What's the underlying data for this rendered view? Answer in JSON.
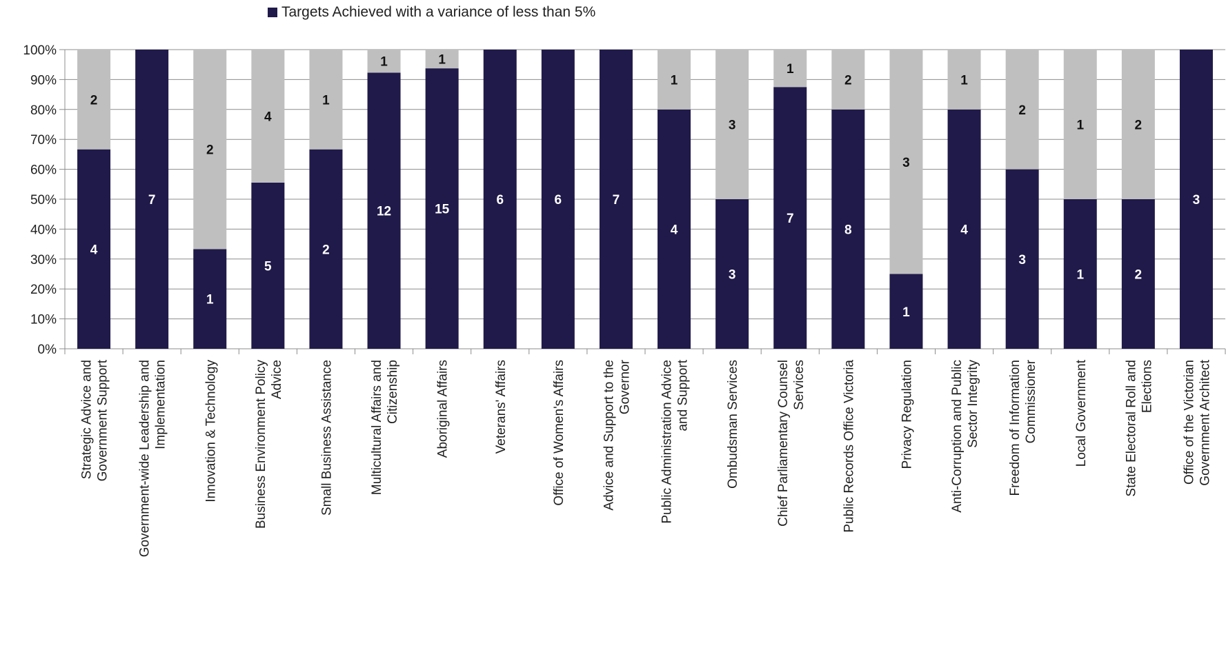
{
  "chart_data": {
    "type": "bar",
    "stacked": true,
    "normalized": true,
    "legend": {
      "placement": "top",
      "entries": [
        "Targets Achieved with a variance of less than 5%"
      ]
    },
    "categories": [
      "Strategic Advice and Government Support",
      "Government-wide Leadership and Implementation",
      "Innovation & Technology",
      "Business Environment Policy Advice",
      "Small Business Assistance",
      "Multicultural Affairs and Citizenship",
      "Aboriginal Affairs",
      "Veterans' Affairs",
      "Office of Women's Affairs",
      "Advice and Support to the Governor",
      "Public Administration Advice and Support",
      "Ombudsman Services",
      "Chief Parliamentary Counsel Services",
      "Public Records Office Victoria",
      "Privacy Regulation",
      "Anti-Corruption and Public Sector Integrity",
      "Freedom of Information Commissioner",
      "Local Government",
      "State Electoral Roll and Elections",
      "Office of the Victorian Government Architect"
    ],
    "series": [
      {
        "name": "Targets Achieved with a variance of less than 5%",
        "color": "#201a4a",
        "values": [
          4,
          7,
          1,
          5,
          2,
          12,
          15,
          6,
          6,
          7,
          4,
          3,
          7,
          8,
          1,
          4,
          3,
          1,
          2,
          3
        ]
      },
      {
        "color": "#bfbfbf",
        "values": [
          2,
          0,
          2,
          4,
          1,
          1,
          1,
          0,
          0,
          0,
          1,
          3,
          1,
          2,
          3,
          1,
          2,
          1,
          2,
          0
        ]
      }
    ],
    "yticks": [
      "0%",
      "10%",
      "20%",
      "30%",
      "40%",
      "50%",
      "60%",
      "70%",
      "80%",
      "90%",
      "100%"
    ],
    "ylim": [
      0,
      100
    ],
    "grid": true
  }
}
